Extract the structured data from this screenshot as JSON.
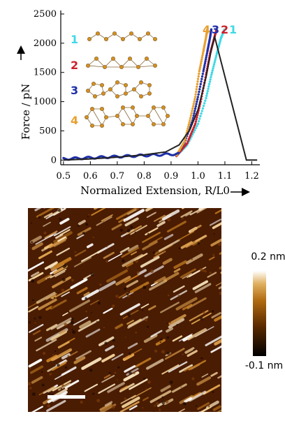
{
  "chart_data": [
    {
      "type": "scatter",
      "xlabel": "Normalized Extension, R/L0",
      "ylabel": "Force / pN",
      "xlim": [
        0.49,
        1.23
      ],
      "ylim": [
        -80,
        2560
      ],
      "xticks": [
        "0.5",
        "0.6",
        "0.7",
        "0.8",
        "0.9",
        "1.0",
        "1.1",
        "1.2"
      ],
      "yticks": [
        "0",
        "500",
        "1000",
        "1500",
        "2000",
        "2500"
      ],
      "curve_labels": [
        "4",
        "3",
        "2",
        "1"
      ],
      "inset_labels": [
        "1",
        "2",
        "3",
        "4"
      ],
      "colors": {
        "1": "#3fd9e6",
        "2": "#cc1f2a",
        "3": "#1f2fa8",
        "4": "#e8a030",
        "experiment": "#222222"
      },
      "series": [
        {
          "id": "1",
          "dotted": true,
          "x": [
            0.92,
            0.96,
            1.0,
            1.03,
            1.05,
            1.07,
            1.085,
            1.1
          ],
          "y": [
            70,
            260,
            620,
            1060,
            1460,
            1820,
            2080,
            2250
          ]
        },
        {
          "id": "2",
          "dotted": true,
          "x": [
            0.92,
            0.96,
            0.99,
            1.01,
            1.03,
            1.045,
            1.06,
            1.07
          ],
          "y": [
            70,
            290,
            620,
            1000,
            1460,
            1820,
            2080,
            2250
          ]
        },
        {
          "id": "3",
          "dotted": true,
          "x": [
            0.92,
            0.95,
            0.98,
            1.0,
            1.02,
            1.035,
            1.045,
            1.05
          ],
          "y": [
            80,
            300,
            680,
            1080,
            1520,
            1860,
            2100,
            2250
          ]
        },
        {
          "id": "4",
          "dotted": true,
          "x": [
            0.92,
            0.95,
            0.97,
            0.99,
            1.005,
            1.02,
            1.03,
            1.035
          ],
          "y": [
            80,
            320,
            680,
            1080,
            1520,
            1860,
            2100,
            2250
          ]
        },
        {
          "id": "experiment",
          "dotted": false,
          "x": [
            0.5,
            0.6,
            0.7,
            0.8,
            0.88,
            0.93,
            0.97,
            1.0,
            1.03,
            1.05,
            1.062,
            1.18,
            1.2,
            1.22
          ],
          "y": [
            0,
            20,
            50,
            90,
            140,
            260,
            520,
            860,
            1420,
            1900,
            2110,
            0,
            0,
            0
          ]
        }
      ]
    },
    {
      "type": "heatmap",
      "colorbar_max": "0.2 nm",
      "colorbar_min": "-0.1 nm"
    }
  ]
}
